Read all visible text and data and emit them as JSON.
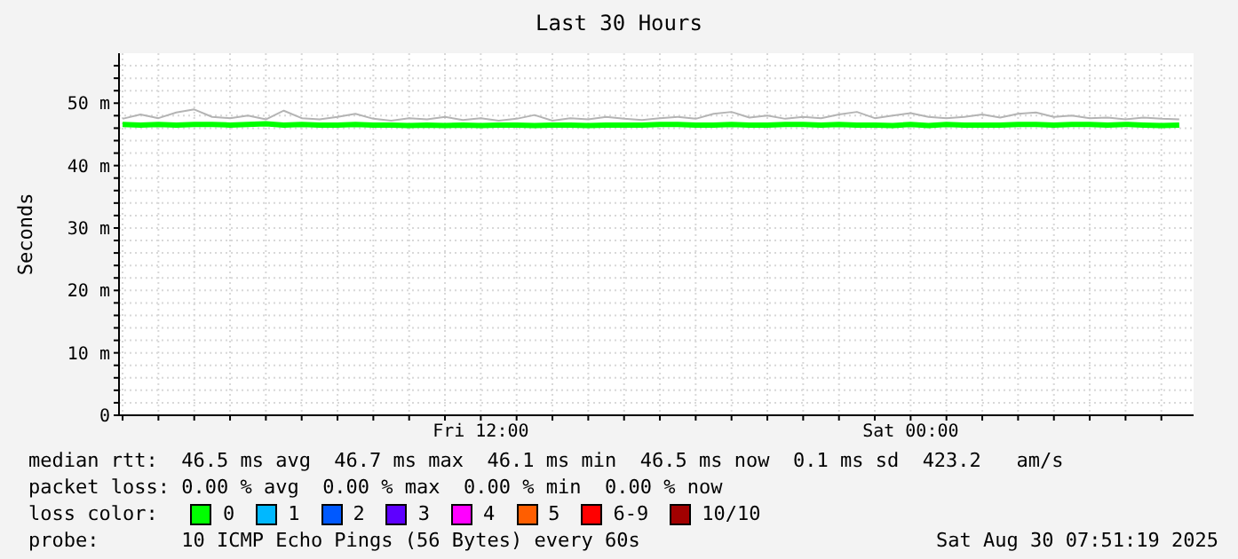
{
  "chart_data": {
    "type": "line",
    "title": "Last 30 Hours",
    "ylabel": "Seconds",
    "x": [
      "2025-08-29T02:00",
      "2025-08-29T02:30",
      "2025-08-29T03:00",
      "2025-08-29T03:30",
      "2025-08-29T04:00",
      "2025-08-29T04:30",
      "2025-08-29T05:00",
      "2025-08-29T05:30",
      "2025-08-29T06:00",
      "2025-08-29T06:30",
      "2025-08-29T07:00",
      "2025-08-29T07:30",
      "2025-08-29T08:00",
      "2025-08-29T08:30",
      "2025-08-29T09:00",
      "2025-08-29T09:30",
      "2025-08-29T10:00",
      "2025-08-29T10:30",
      "2025-08-29T11:00",
      "2025-08-29T11:30",
      "2025-08-29T12:00",
      "2025-08-29T12:30",
      "2025-08-29T13:00",
      "2025-08-29T13:30",
      "2025-08-29T14:00",
      "2025-08-29T14:30",
      "2025-08-29T15:00",
      "2025-08-29T15:30",
      "2025-08-29T16:00",
      "2025-08-29T16:30",
      "2025-08-29T17:00",
      "2025-08-29T17:30",
      "2025-08-29T18:00",
      "2025-08-29T18:30",
      "2025-08-29T19:00",
      "2025-08-29T19:30",
      "2025-08-29T20:00",
      "2025-08-29T20:30",
      "2025-08-29T21:00",
      "2025-08-29T21:30",
      "2025-08-29T22:00",
      "2025-08-29T22:30",
      "2025-08-29T23:00",
      "2025-08-29T23:30",
      "2025-08-30T00:00",
      "2025-08-30T00:30",
      "2025-08-30T01:00",
      "2025-08-30T01:30",
      "2025-08-30T02:00",
      "2025-08-30T02:30",
      "2025-08-30T03:00",
      "2025-08-30T03:30",
      "2025-08-30T04:00",
      "2025-08-30T04:30",
      "2025-08-30T05:00",
      "2025-08-30T05:30",
      "2025-08-30T06:00",
      "2025-08-30T06:30",
      "2025-08-30T07:00",
      "2025-08-30T07:30"
    ],
    "series": [
      {
        "color": "#b4b4b4",
        "values": [
          47.5,
          48.2,
          47.6,
          48.5,
          49,
          47.8,
          47.6,
          48,
          47.4,
          48.8,
          47.6,
          47.4,
          47.8,
          48.3,
          47.5,
          47.2,
          47.6,
          47.4,
          47.8,
          47.3,
          47.6,
          47.2,
          47.5,
          48.1,
          47.2,
          47.6,
          47.4,
          47.8,
          47.5,
          47.3,
          47.6,
          47.8,
          47.5,
          48.3,
          48.6,
          47.7,
          48,
          47.5,
          47.8,
          47.6,
          48.2,
          48.6,
          47.6,
          48,
          48.4,
          47.8,
          47.6,
          47.8,
          48.2,
          47.7,
          48.3,
          48.5,
          47.8,
          48,
          47.6,
          47.7,
          47.4,
          47.7,
          47.5,
          47.4
        ]
      },
      {
        "name": "0",
        "color": "#00ff00",
        "values": [
          46.6,
          46.5,
          46.6,
          46.5,
          46.6,
          46.6,
          46.5,
          46.6,
          46.7,
          46.5,
          46.6,
          46.5,
          46.5,
          46.6,
          46.5,
          46.5,
          46.4,
          46.5,
          46.4,
          46.5,
          46.4,
          46.5,
          46.5,
          46.4,
          46.5,
          46.5,
          46.4,
          46.5,
          46.5,
          46.5,
          46.6,
          46.6,
          46.5,
          46.5,
          46.6,
          46.5,
          46.5,
          46.6,
          46.6,
          46.5,
          46.6,
          46.5,
          46.5,
          46.4,
          46.6,
          46.4,
          46.6,
          46.5,
          46.5,
          46.5,
          46.6,
          46.6,
          46.5,
          46.6,
          46.6,
          46.5,
          46.6,
          46.5,
          46.4,
          46.5
        ]
      },
      {
        "name": "1",
        "color": "#00b8ff",
        "values": [
          null,
          null,
          null,
          null,
          null,
          null,
          null,
          null,
          null,
          null,
          null,
          null,
          null,
          null,
          null,
          null,
          null,
          null,
          null,
          null,
          null,
          null,
          null,
          null,
          null,
          null,
          null,
          null,
          null,
          null,
          null,
          null,
          null,
          null,
          null,
          null,
          null,
          null,
          null,
          null,
          null,
          null,
          null,
          null,
          null,
          null,
          null,
          null,
          null,
          null,
          null,
          null,
          null,
          null,
          null,
          null,
          null,
          null,
          null,
          null
        ]
      },
      {
        "name": "2",
        "color": "#0059ff",
        "values": [
          null,
          null,
          null,
          null,
          null,
          null,
          null,
          null,
          null,
          null,
          null,
          null,
          null,
          null,
          null,
          null,
          null,
          null,
          null,
          null,
          null,
          null,
          null,
          null,
          null,
          null,
          null,
          null,
          null,
          null,
          null,
          null,
          null,
          null,
          null,
          null,
          null,
          null,
          null,
          null,
          null,
          null,
          null,
          null,
          null,
          null,
          null,
          null,
          null,
          null,
          null,
          null,
          null,
          null,
          null,
          null,
          null,
          null,
          null,
          null
        ]
      },
      {
        "name": "3",
        "color": "#5e00ff",
        "values": [
          null,
          null,
          null,
          null,
          null,
          null,
          null,
          null,
          null,
          null,
          null,
          null,
          null,
          null,
          null,
          null,
          null,
          null,
          null,
          null,
          null,
          null,
          null,
          null,
          null,
          null,
          null,
          null,
          null,
          null,
          null,
          null,
          null,
          null,
          null,
          null,
          null,
          null,
          null,
          null,
          null,
          null,
          null,
          null,
          null,
          null,
          null,
          null,
          null,
          null,
          null,
          null,
          null,
          null,
          null,
          null,
          null,
          null,
          null,
          null
        ]
      },
      {
        "name": "4",
        "color": "#ff00ff",
        "values": [
          null,
          null,
          null,
          null,
          null,
          null,
          null,
          null,
          null,
          null,
          null,
          null,
          null,
          null,
          null,
          null,
          null,
          null,
          null,
          null,
          null,
          null,
          null,
          null,
          null,
          null,
          null,
          null,
          null,
          null,
          null,
          null,
          null,
          null,
          null,
          null,
          null,
          null,
          null,
          null,
          null,
          null,
          null,
          null,
          null,
          null,
          null,
          null,
          null,
          null,
          null,
          null,
          null,
          null,
          null,
          null,
          null,
          null,
          null,
          null
        ]
      },
      {
        "name": "5",
        "color": "#ff5e00",
        "values": [
          null,
          null,
          null,
          null,
          null,
          null,
          null,
          null,
          null,
          null,
          null,
          null,
          null,
          null,
          null,
          null,
          null,
          null,
          null,
          null,
          null,
          null,
          null,
          null,
          null,
          null,
          null,
          null,
          null,
          null,
          null,
          null,
          null,
          null,
          null,
          null,
          null,
          null,
          null,
          null,
          null,
          null,
          null,
          null,
          null,
          null,
          null,
          null,
          null,
          null,
          null,
          null,
          null,
          null,
          null,
          null,
          null,
          null,
          null,
          null
        ]
      },
      {
        "name": "6-9",
        "color": "#ff0000",
        "values": [
          null,
          null,
          null,
          null,
          null,
          null,
          null,
          null,
          null,
          null,
          null,
          null,
          null,
          null,
          null,
          null,
          null,
          null,
          null,
          null,
          null,
          null,
          null,
          null,
          null,
          null,
          null,
          null,
          null,
          null,
          null,
          null,
          null,
          null,
          null,
          null,
          null,
          null,
          null,
          null,
          null,
          null,
          null,
          null,
          null,
          null,
          null,
          null,
          null,
          null,
          null,
          null,
          null,
          null,
          null,
          null,
          null,
          null,
          null,
          null
        ]
      },
      {
        "name": "10/10",
        "color": "#a10000",
        "values": [
          null,
          null,
          null,
          null,
          null,
          null,
          null,
          null,
          null,
          null,
          null,
          null,
          null,
          null,
          null,
          null,
          null,
          null,
          null,
          null,
          null,
          null,
          null,
          null,
          null,
          null,
          null,
          null,
          null,
          null,
          null,
          null,
          null,
          null,
          null,
          null,
          null,
          null,
          null,
          null,
          null,
          null,
          null,
          null,
          null,
          null,
          null,
          null,
          null,
          null,
          null,
          null,
          null,
          null,
          null,
          null,
          null,
          null,
          null,
          null
        ]
      }
    ],
    "legend": "bottom",
    "legend_title": "loss color:",
    "grid": true,
    "xlim": [
      "2025-08-29T01:54",
      "2025-08-30T07:54"
    ],
    "xticks": [
      {
        "value": "2025-08-29T02:00",
        "label": null
      },
      {
        "value": "2025-08-29T03:00",
        "label": null
      },
      {
        "value": "2025-08-29T04:00",
        "label": null
      },
      {
        "value": "2025-08-29T05:00",
        "label": null
      },
      {
        "value": "2025-08-29T06:00",
        "label": null
      },
      {
        "value": "2025-08-29T07:00",
        "label": null
      },
      {
        "value": "2025-08-29T08:00",
        "label": null
      },
      {
        "value": "2025-08-29T09:00",
        "label": null
      },
      {
        "value": "2025-08-29T10:00",
        "label": null
      },
      {
        "value": "2025-08-29T11:00",
        "label": null
      },
      {
        "value": "2025-08-29T12:00",
        "label": "Fri 12:00"
      },
      {
        "value": "2025-08-29T13:00",
        "label": null
      },
      {
        "value": "2025-08-29T14:00",
        "label": null
      },
      {
        "value": "2025-08-29T15:00",
        "label": null
      },
      {
        "value": "2025-08-29T16:00",
        "label": null
      },
      {
        "value": "2025-08-29T17:00",
        "label": null
      },
      {
        "value": "2025-08-29T18:00",
        "label": null
      },
      {
        "value": "2025-08-29T19:00",
        "label": null
      },
      {
        "value": "2025-08-29T20:00",
        "label": null
      },
      {
        "value": "2025-08-29T21:00",
        "label": null
      },
      {
        "value": "2025-08-29T22:00",
        "label": null
      },
      {
        "value": "2025-08-29T23:00",
        "label": null
      },
      {
        "value": "2025-08-30T00:00",
        "label": "Sat 00:00"
      },
      {
        "value": "2025-08-30T01:00",
        "label": null
      },
      {
        "value": "2025-08-30T02:00",
        "label": null
      },
      {
        "value": "2025-08-30T03:00",
        "label": null
      },
      {
        "value": "2025-08-30T04:00",
        "label": null
      },
      {
        "value": "2025-08-30T05:00",
        "label": null
      },
      {
        "value": "2025-08-30T06:00",
        "label": null
      },
      {
        "value": "2025-08-30T07:00",
        "label": null
      }
    ],
    "ylim": [
      0,
      58
    ],
    "yticks": [
      0,
      {
        "value": 2,
        "label": null
      },
      {
        "value": 4,
        "label": null
      },
      {
        "value": 6,
        "label": null
      },
      {
        "value": 8,
        "label": null
      },
      {
        "value": 10,
        "label": "10 m"
      },
      {
        "value": 12,
        "label": null
      },
      {
        "value": 14,
        "label": null
      },
      {
        "value": 16,
        "label": null
      },
      {
        "value": 18,
        "label": null
      },
      {
        "value": 20,
        "label": "20 m"
      },
      {
        "value": 22,
        "label": null
      },
      {
        "value": 24,
        "label": null
      },
      {
        "value": 26,
        "label": null
      },
      {
        "value": 28,
        "label": null
      },
      {
        "value": 30,
        "label": "30 m"
      },
      {
        "value": 32,
        "label": null
      },
      {
        "value": 34,
        "label": null
      },
      {
        "value": 36,
        "label": null
      },
      {
        "value": 38,
        "label": null
      },
      {
        "value": 40,
        "label": "40 m"
      },
      {
        "value": 42,
        "label": null
      },
      {
        "value": 44,
        "label": null
      },
      {
        "value": 46,
        "label": null
      },
      {
        "value": 48,
        "label": null
      },
      {
        "value": 50,
        "label": "50 m"
      },
      {
        "value": 52,
        "label": null
      },
      {
        "value": 54,
        "label": null
      },
      {
        "value": 56,
        "label": null
      }
    ],
    "annotations": [
      "median rtt:  46.5 ms avg  46.7 ms max  46.1 ms min  46.5 ms now  0.1 ms sd  423.2   am/s",
      "packet loss: 0.00 % avg  0.00 % max  0.00 % min  0.00 % now",
      "probe:       10 ICMP Echo Pings (56 Bytes) every 60s",
      "Sat Aug 30 07:51:19 2025"
    ]
  }
}
